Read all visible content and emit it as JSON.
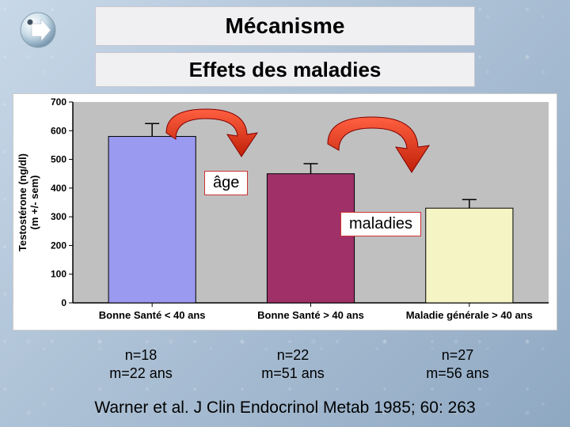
{
  "title": "Mécanisme",
  "subtitle": "Effets des maladies",
  "labels": {
    "age": "âge",
    "maladies": "maladies"
  },
  "chart": {
    "type": "bar",
    "ylabel_line1": "Testostérone (ng/dl)",
    "ylabel_line2": "(m +/- sem)",
    "ylim": [
      0,
      700
    ],
    "ytick_step": 100,
    "label_fontsize": 13,
    "tick_fontsize": 12,
    "background_color": "#ffffff",
    "plot_bg_color": "#c0c0c0",
    "axis_color": "#000000",
    "bar_border_color": "#000000",
    "bar_width": 0.55,
    "bars": [
      {
        "category": "Bonne Santé < 40 ans",
        "value": 580,
        "error": 45,
        "color": "#9a9af0"
      },
      {
        "category": "Bonne Santé > 40 ans",
        "value": 450,
        "error": 35,
        "color": "#a03068"
      },
      {
        "category": "Maladie générale > 40 ans",
        "value": 330,
        "error": 30,
        "color": "#f4f4c4"
      }
    ]
  },
  "groups": [
    {
      "n": "n=18",
      "m": "m=22 ans"
    },
    {
      "n": "n=22",
      "m": "m=51 ans"
    },
    {
      "n": "n=27",
      "m": "m=56 ans"
    }
  ],
  "citation": "Warner et al. J Clin Endocrinol Metab 1985; 60: 263",
  "arrow_fill": "#d83018",
  "arrow_stroke": "#800000"
}
